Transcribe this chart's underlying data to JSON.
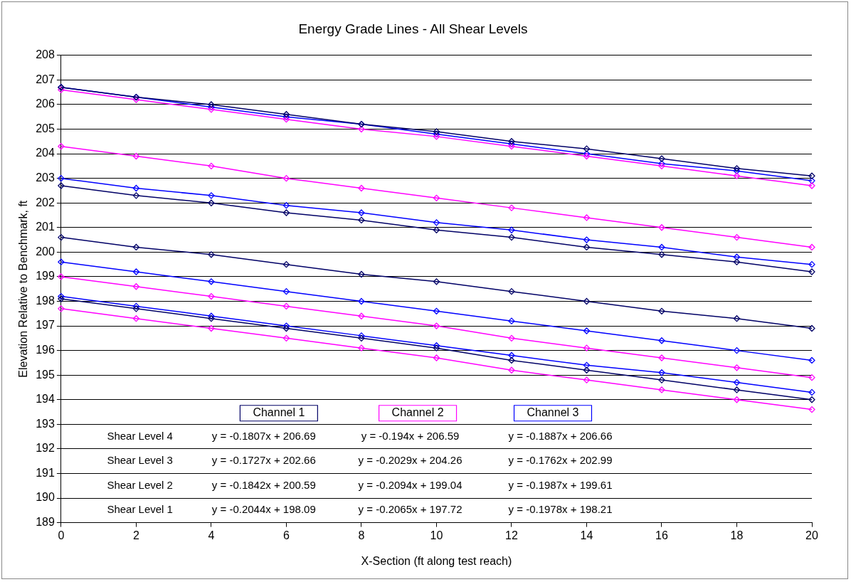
{
  "chart_data": {
    "type": "line",
    "title": "Energy Grade Lines - All Shear Levels",
    "xlabel": "X-Section (ft along test reach)",
    "ylabel": "Elevation Relative to Benchmark, ft",
    "x": [
      0,
      2,
      4,
      6,
      8,
      10,
      12,
      14,
      16,
      18,
      20
    ],
    "xlim": [
      0,
      20
    ],
    "xticks": [
      0,
      2,
      4,
      6,
      8,
      10,
      12,
      14,
      16,
      18,
      20
    ],
    "ylim": [
      189,
      208
    ],
    "yticks": [
      189,
      190,
      191,
      192,
      193,
      194,
      195,
      196,
      197,
      198,
      199,
      200,
      201,
      202,
      203,
      204,
      205,
      206,
      207,
      208
    ],
    "grid": "y",
    "legend": false,
    "marker": "diamond",
    "line_style": "solid",
    "series": [
      {
        "color": "#000066",
        "values": [
          206.7,
          206.3,
          206.0,
          205.6,
          205.2,
          204.9,
          204.5,
          204.2,
          203.8,
          203.4,
          203.1
        ]
      },
      {
        "color": "#000066",
        "values": [
          202.7,
          202.3,
          202.0,
          201.6,
          201.3,
          200.9,
          200.6,
          200.2,
          199.9,
          199.6,
          199.2
        ]
      },
      {
        "color": "#000066",
        "values": [
          200.6,
          200.2,
          199.9,
          199.5,
          199.1,
          198.8,
          198.4,
          198.0,
          197.6,
          197.3,
          196.9
        ]
      },
      {
        "color": "#000066",
        "values": [
          198.1,
          197.7,
          197.3,
          196.9,
          196.5,
          196.1,
          195.6,
          195.2,
          194.8,
          194.4,
          194.0
        ]
      },
      {
        "color": "#ff00ff",
        "values": [
          206.6,
          206.2,
          205.8,
          205.4,
          205.0,
          204.7,
          204.3,
          203.9,
          203.5,
          203.1,
          202.7
        ]
      },
      {
        "color": "#ff00ff",
        "values": [
          204.3,
          203.9,
          203.5,
          203.0,
          202.6,
          202.2,
          201.8,
          201.4,
          201.0,
          200.6,
          200.2
        ]
      },
      {
        "color": "#ff00ff",
        "values": [
          199.0,
          198.6,
          198.2,
          197.8,
          197.4,
          197.0,
          196.5,
          196.1,
          195.7,
          195.3,
          194.9
        ]
      },
      {
        "color": "#ff00ff",
        "values": [
          197.7,
          197.3,
          196.9,
          196.5,
          196.1,
          195.7,
          195.2,
          194.8,
          194.4,
          194.0,
          193.6
        ]
      },
      {
        "color": "#0000ff",
        "values": [
          206.7,
          206.3,
          205.9,
          205.5,
          205.2,
          204.8,
          204.4,
          204.0,
          203.6,
          203.3,
          202.9
        ]
      },
      {
        "color": "#0000ff",
        "values": [
          203.0,
          202.6,
          202.3,
          201.9,
          201.6,
          201.2,
          200.9,
          200.5,
          200.2,
          199.8,
          199.5
        ]
      },
      {
        "color": "#0000ff",
        "values": [
          199.6,
          199.2,
          198.8,
          198.4,
          198.0,
          197.6,
          197.2,
          196.8,
          196.4,
          196.0,
          195.6
        ]
      },
      {
        "color": "#0000ff",
        "values": [
          198.2,
          197.8,
          197.4,
          197.0,
          196.6,
          196.2,
          195.8,
          195.4,
          195.1,
          194.7,
          194.3
        ]
      }
    ],
    "annotations": [
      "Channel 1",
      "Channel 2",
      "Channel 3",
      "Shear Level 4",
      "y = -0.1807x + 206.69",
      "y = -0.194x + 206.59",
      "y = -0.1887x + 206.66",
      "Shear Level 3",
      "y = -0.1727x + 202.66",
      "y = -0.2029x + 204.26",
      "y = -0.1762x + 202.99",
      "Shear Level 2",
      "y = -0.1842x + 200.59",
      "y = -0.2094x + 199.04",
      "y = -0.1987x + 199.61",
      "Shear Level 1",
      "y = -0.2044x + 198.09",
      "y = -0.2065x + 197.72",
      "y = -0.1978x + 198.21"
    ]
  }
}
